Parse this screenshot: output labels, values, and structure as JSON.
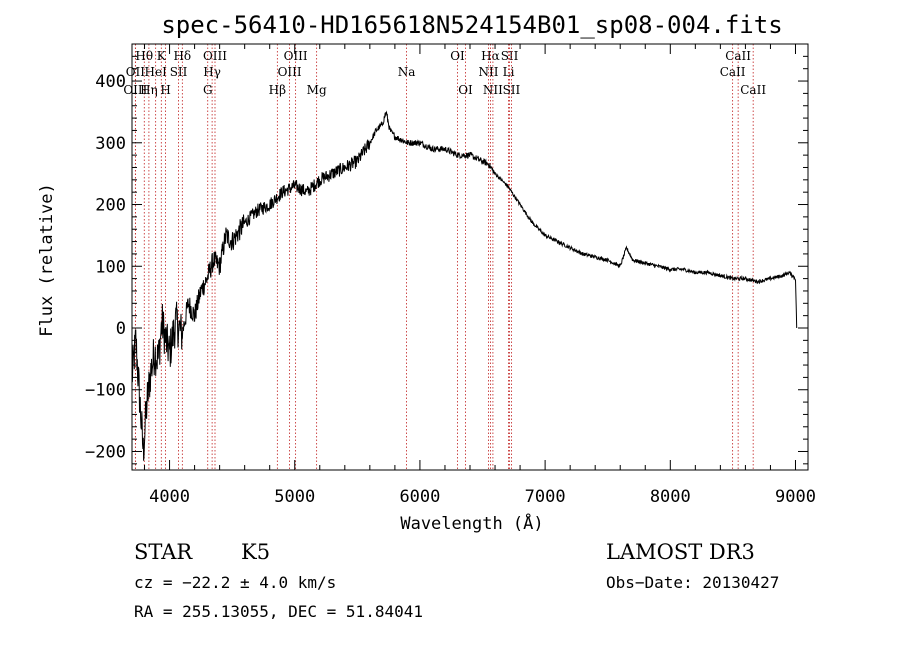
{
  "chart_data": {
    "type": "line",
    "title": "spec-56410-HD165618N524154B01_sp08-004.fits",
    "xlabel": "Wavelength (Å)",
    "ylabel": "Flux (relative)",
    "xlim": [
      3700,
      9100
    ],
    "ylim": [
      -230,
      460
    ],
    "xticks": [
      4000,
      5000,
      6000,
      7000,
      8000,
      9000
    ],
    "yticks": [
      -200,
      -100,
      0,
      100,
      200,
      300,
      400
    ],
    "series": [
      {
        "name": "spectrum",
        "x": [
          3700,
          3730,
          3760,
          3790,
          3820,
          3850,
          3880,
          3910,
          3940,
          3970,
          4000,
          4050,
          4100,
          4150,
          4200,
          4250,
          4300,
          4350,
          4400,
          4450,
          4500,
          4600,
          4700,
          4800,
          4900,
          5000,
          5100,
          5200,
          5300,
          5400,
          5500,
          5600,
          5650,
          5700,
          5730,
          5760,
          5800,
          5900,
          6000,
          6100,
          6200,
          6300,
          6400,
          6500,
          6550,
          6600,
          6700,
          6800,
          6900,
          7000,
          7100,
          7200,
          7300,
          7400,
          7500,
          7600,
          7650,
          7700,
          7800,
          7900,
          8000,
          8100,
          8200,
          8300,
          8400,
          8500,
          8600,
          8700,
          8800,
          8900,
          8950,
          9000,
          9010
        ],
        "y": [
          -80,
          -20,
          -110,
          -200,
          -120,
          -70,
          -40,
          -50,
          10,
          -20,
          -40,
          10,
          -10,
          40,
          20,
          60,
          80,
          110,
          100,
          150,
          140,
          170,
          190,
          200,
          220,
          230,
          220,
          240,
          250,
          260,
          270,
          300,
          320,
          330,
          350,
          320,
          310,
          300,
          300,
          290,
          290,
          280,
          280,
          270,
          265,
          250,
          230,
          200,
          170,
          150,
          140,
          130,
          120,
          115,
          110,
          100,
          130,
          110,
          105,
          100,
          95,
          95,
          90,
          90,
          85,
          80,
          80,
          75,
          80,
          85,
          90,
          80,
          0
        ]
      }
    ],
    "emission_lines": [
      {
        "label": "Hθ",
        "x": 3798,
        "row": 1
      },
      {
        "label": "OII",
        "x": 3727,
        "row": 2
      },
      {
        "label": "OIII",
        "x": 3727,
        "row": 3
      },
      {
        "label": "Hη",
        "x": 3835,
        "row": 3
      },
      {
        "label": "K",
        "x": 3934,
        "row": 1
      },
      {
        "label": "HeI",
        "x": 3889,
        "row": 2
      },
      {
        "label": "H",
        "x": 3968,
        "row": 3
      },
      {
        "label": "SII",
        "x": 4072,
        "row": 2
      },
      {
        "label": "Hδ",
        "x": 4102,
        "row": 1
      },
      {
        "label": "OIII",
        "x": 4363,
        "row": 1
      },
      {
        "label": "Hγ",
        "x": 4340,
        "row": 2
      },
      {
        "label": "G",
        "x": 4305,
        "row": 3
      },
      {
        "label": "Hβ",
        "x": 4861,
        "row": 3
      },
      {
        "label": "OIII",
        "x": 5007,
        "row": 1
      },
      {
        "label": "OIII",
        "x": 4959,
        "row": 2
      },
      {
        "label": "Mg",
        "x": 5175,
        "row": 3
      },
      {
        "label": "Na",
        "x": 5893,
        "row": 2
      },
      {
        "label": "OI",
        "x": 6300,
        "row": 1
      },
      {
        "label": "OI",
        "x": 6364,
        "row": 3
      },
      {
        "label": "Hα",
        "x": 6563,
        "row": 1
      },
      {
        "label": "NII",
        "x": 6548,
        "row": 2
      },
      {
        "label": "NII",
        "x": 6583,
        "row": 3
      },
      {
        "label": "SII",
        "x": 6716,
        "row": 1
      },
      {
        "label": "Li",
        "x": 6708,
        "row": 2
      },
      {
        "label": "SII",
        "x": 6731,
        "row": 3
      },
      {
        "label": "CaII",
        "x": 8542,
        "row": 1
      },
      {
        "label": "CaII",
        "x": 8498,
        "row": 2
      },
      {
        "label": "CaII",
        "x": 8662,
        "row": 3
      }
    ]
  },
  "info": {
    "class_label": "STAR",
    "subclass": "K5",
    "survey": "LAMOST DR3",
    "cz": "cz = −22.2 ± 4.0 km/s",
    "obs_date": "Obs−Date: 20130427",
    "coords": "RA = 255.13055, DEC =  51.84041"
  }
}
